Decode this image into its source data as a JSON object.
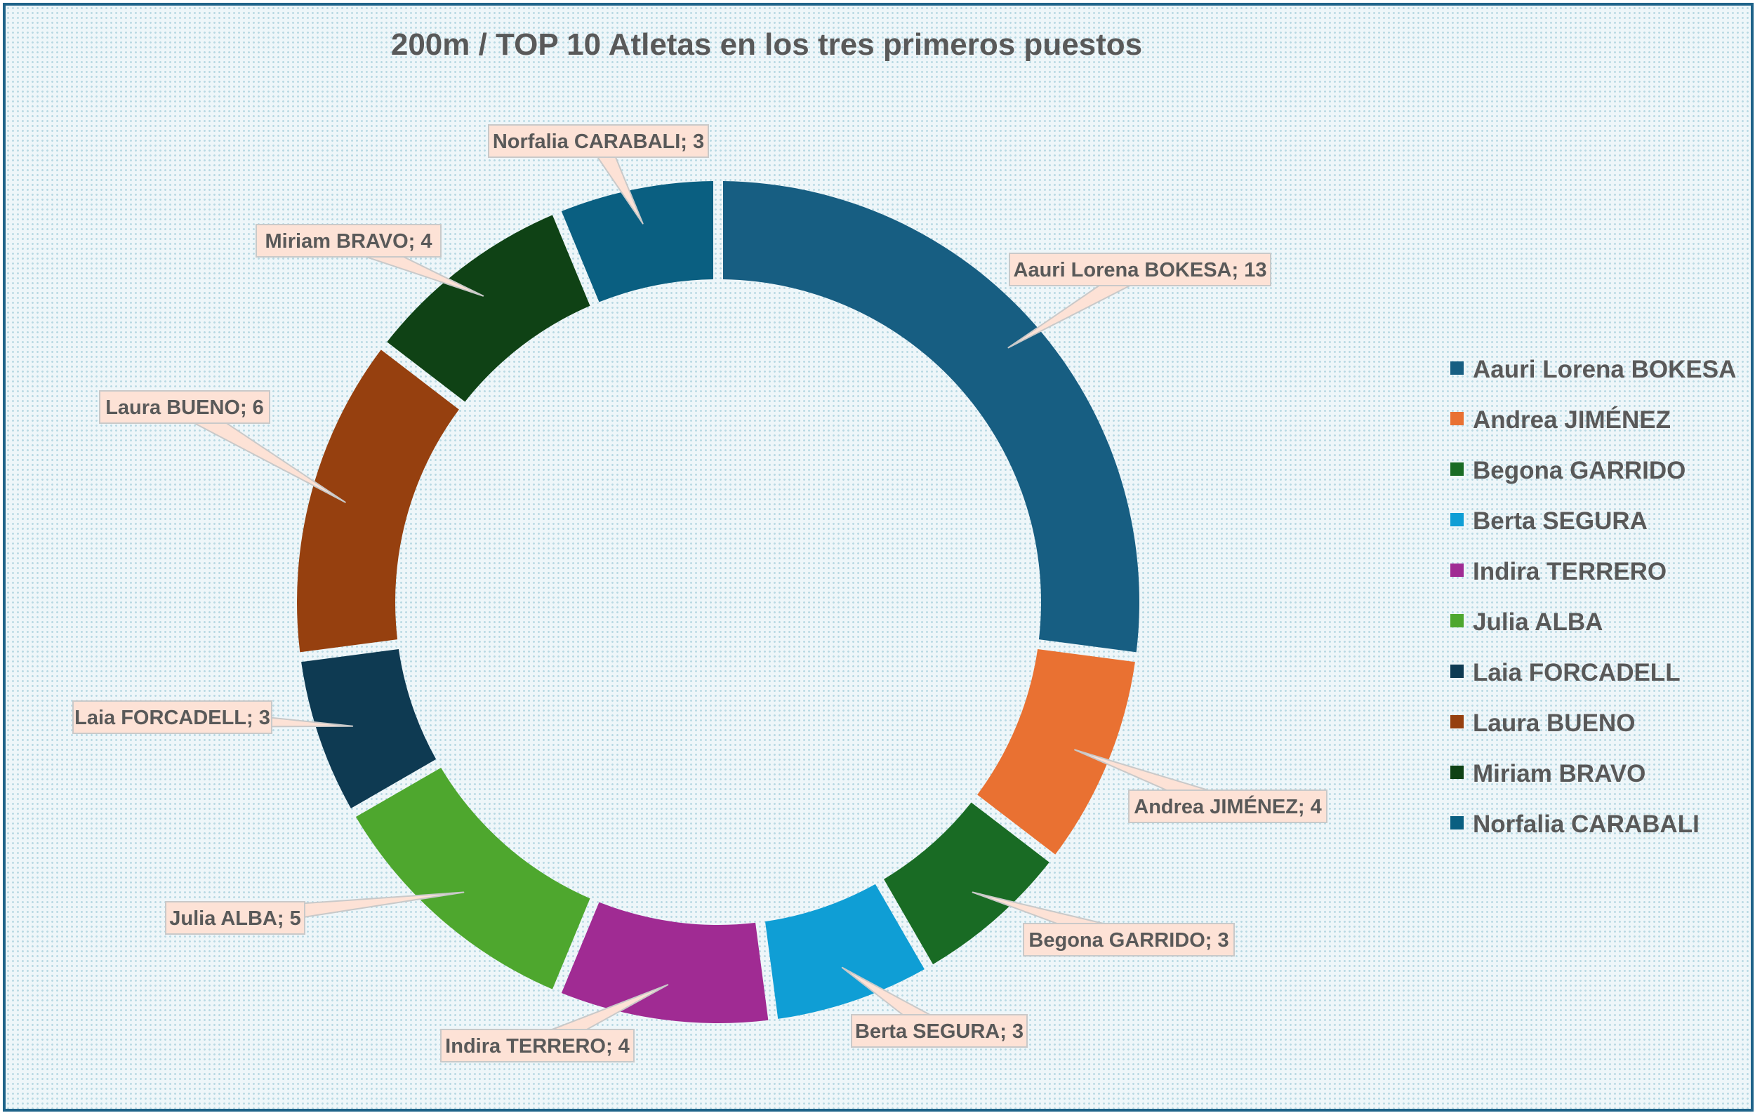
{
  "chart_data": {
    "type": "pie",
    "subtype": "doughnut",
    "title": "200m / TOP 10 Atletas en los tres primeros puestos",
    "categories": [
      "Aauri Lorena BOKESA",
      "Andrea JIMÉNEZ",
      "Begona GARRIDO",
      "Berta SEGURA",
      "Indira TERRERO",
      "Julia ALBA",
      "Laia FORCADELL",
      "Laura BUENO",
      "Miriam BRAVO",
      "Norfalia CARABALI"
    ],
    "values": [
      13,
      4,
      3,
      3,
      4,
      5,
      3,
      6,
      4,
      3
    ],
    "data_labels": [
      "Aauri Lorena BOKESA; 13",
      "Andrea JIMÉNEZ; 4",
      "Begona GARRIDO; 3",
      "Berta SEGURA; 3",
      "Indira TERRERO; 4",
      "Julia ALBA; 5",
      "Laia FORCADELL; 3",
      "Laura BUENO; 6",
      "Miriam BRAVO; 4",
      "Norfalia CARABALI; 3"
    ],
    "colors": [
      "#175e82",
      "#e97132",
      "#196b24",
      "#0f9ed5",
      "#a02b93",
      "#4ea72e",
      "#0e3a52",
      "#96400f",
      "#0f4215",
      "#0a5f81"
    ],
    "legend_position": "right",
    "label_style": "callout"
  }
}
